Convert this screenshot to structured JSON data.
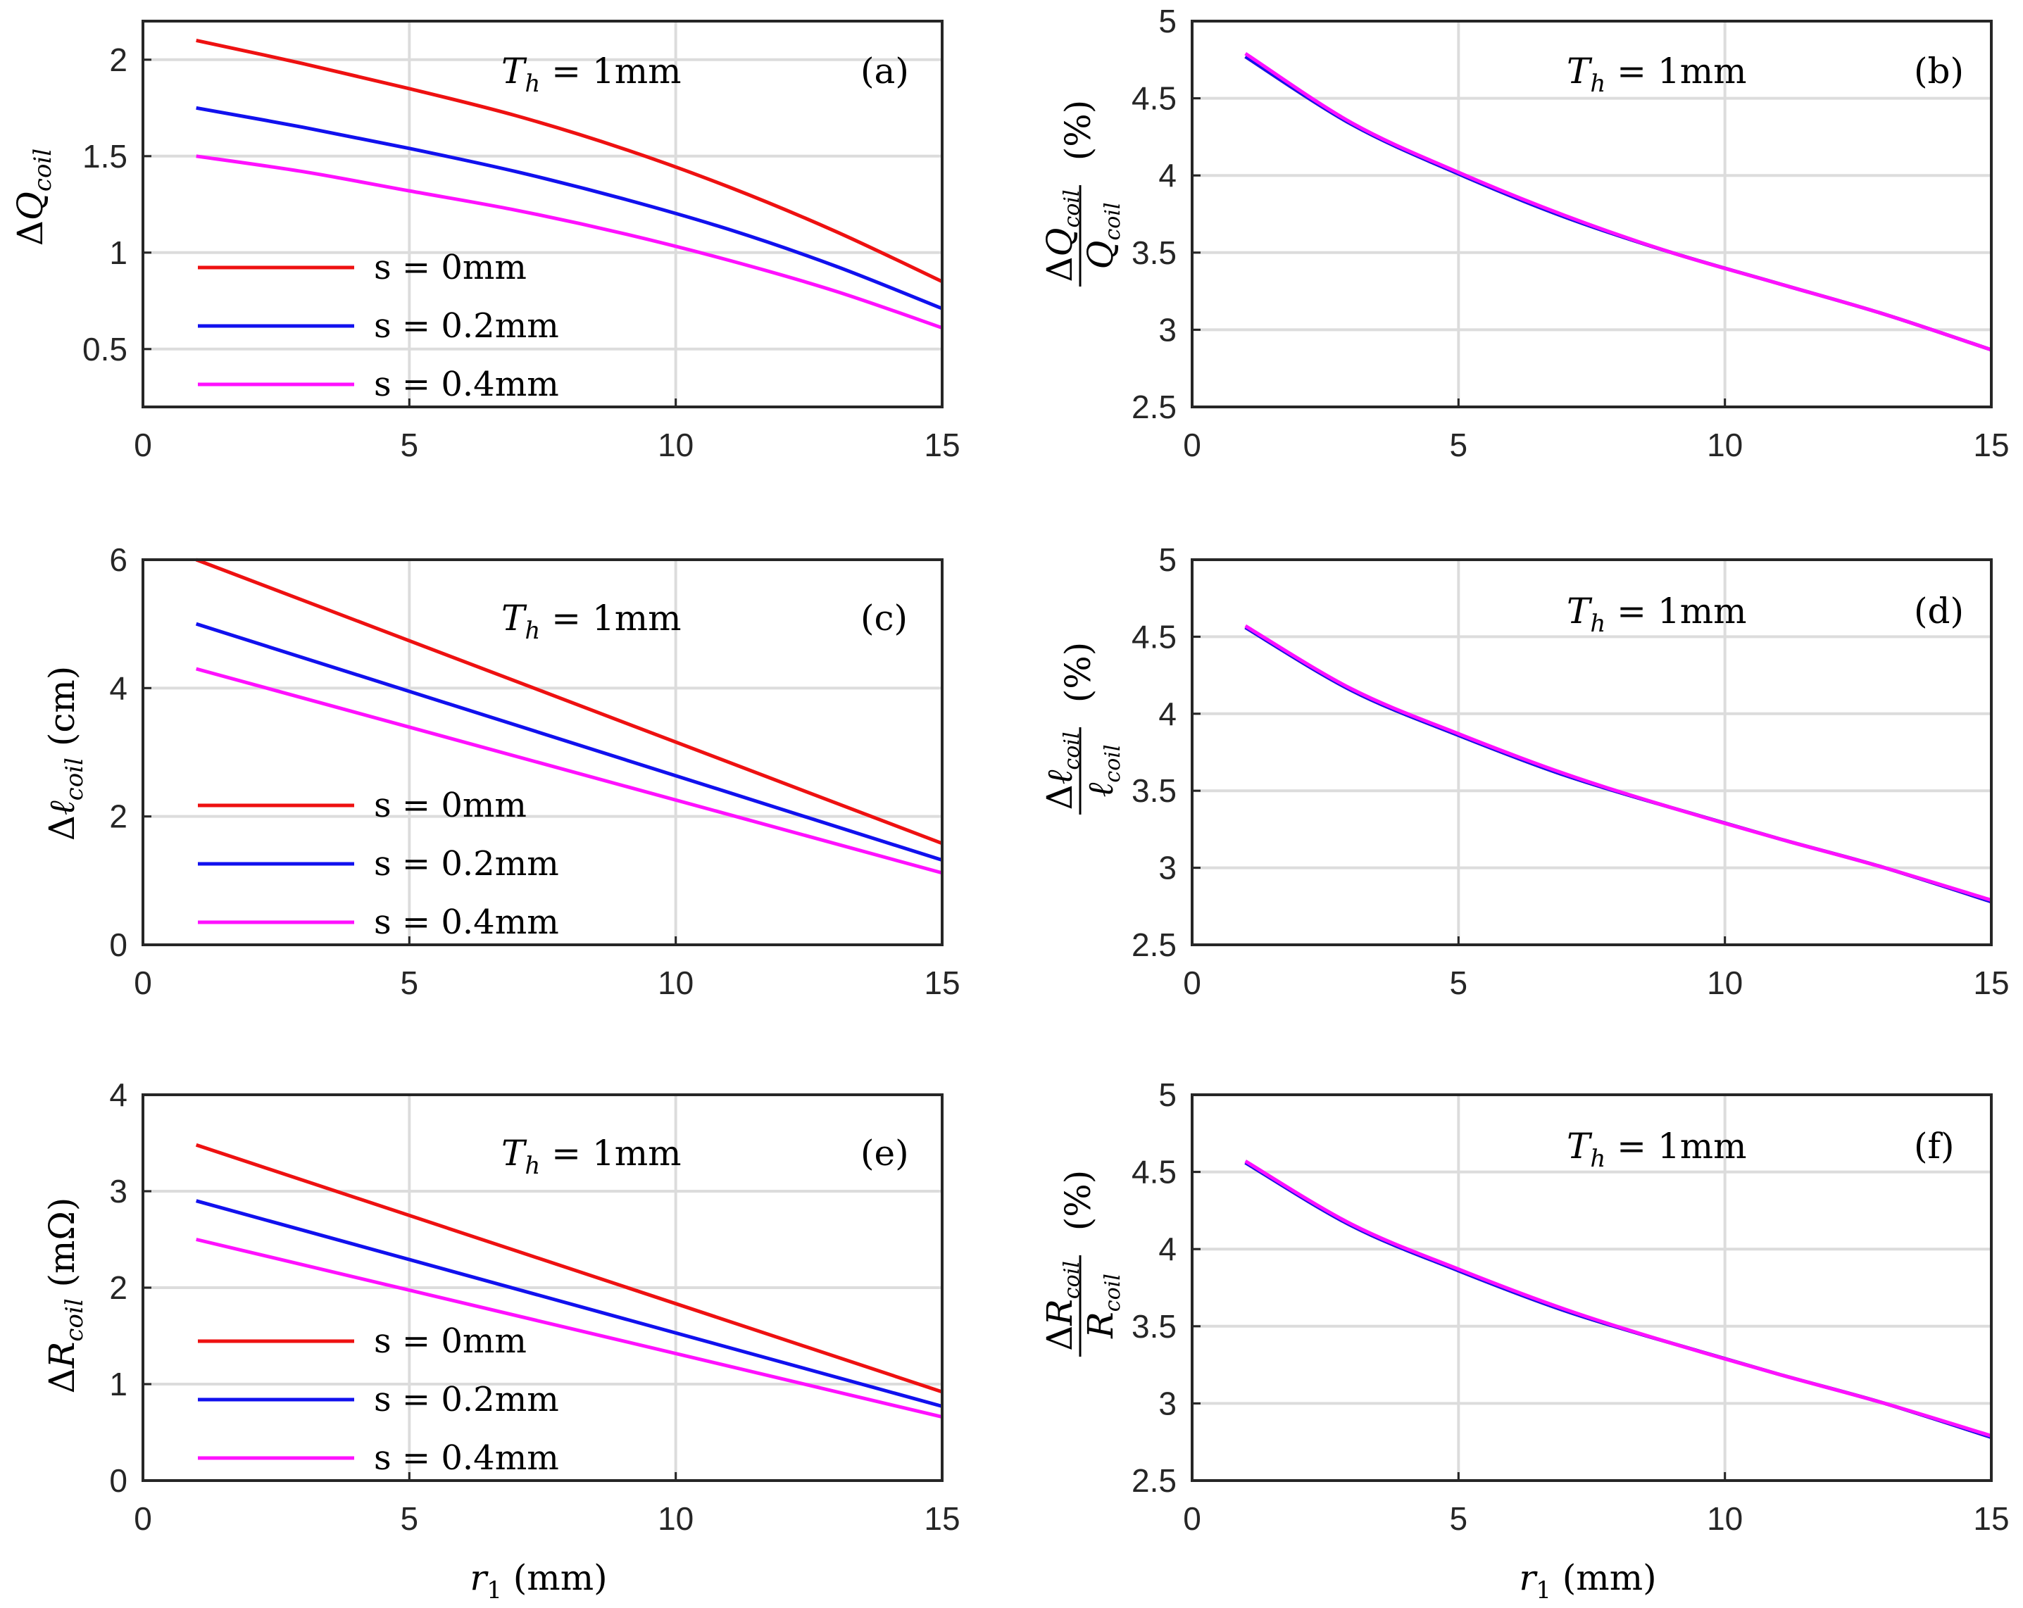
{
  "colors": {
    "s0": "#ee1111",
    "s02": "#1111ee",
    "s04": "#ff11ff"
  },
  "chart_data": [
    {
      "id": "a",
      "type": "line",
      "panel_label": "(a)",
      "annotation": "T_h = 1mm",
      "xlabel": "",
      "ylabel": "ΔQ_coil",
      "xlim": [
        0,
        15
      ],
      "ylim": [
        0.2,
        2.2
      ],
      "xticks": [
        "0",
        "5",
        "10",
        "15"
      ],
      "yticks": [
        "0.5",
        "1",
        "1.5",
        "2"
      ],
      "x": [
        1,
        3,
        5,
        7,
        9,
        11,
        13,
        15
      ],
      "series": [
        {
          "name": "s = 0mm",
          "color": "#ee1111",
          "values": [
            2.1,
            1.98,
            1.85,
            1.71,
            1.54,
            1.34,
            1.11,
            0.85
          ]
        },
        {
          "name": "s = 0.2mm",
          "color": "#1111ee",
          "values": [
            1.75,
            1.65,
            1.54,
            1.42,
            1.28,
            1.12,
            0.93,
            0.71
          ]
        },
        {
          "name": "s = 0.4mm",
          "color": "#ff11ff",
          "values": [
            1.5,
            1.42,
            1.32,
            1.22,
            1.1,
            0.96,
            0.8,
            0.61
          ]
        }
      ],
      "legend": "lower-left"
    },
    {
      "id": "b",
      "type": "line",
      "panel_label": "(b)",
      "annotation": "T_h = 1mm",
      "xlabel": "",
      "ylabel": "ΔQ_coil / Q_coil (%)",
      "xlim": [
        0,
        15
      ],
      "ylim": [
        2.5,
        5
      ],
      "xticks": [
        "0",
        "5",
        "10",
        "15"
      ],
      "yticks": [
        "2.5",
        "3",
        "3.5",
        "4",
        "4.5",
        "5"
      ],
      "x": [
        1,
        3,
        5,
        7,
        9,
        11,
        13,
        15
      ],
      "series": [
        {
          "name": "s = 0mm",
          "color": "#ee1111",
          "values": [
            4.77,
            4.33,
            4.01,
            3.73,
            3.5,
            3.3,
            3.1,
            2.87
          ]
        },
        {
          "name": "s = 0.2mm",
          "color": "#1111ee",
          "values": [
            4.77,
            4.33,
            4.01,
            3.73,
            3.5,
            3.3,
            3.1,
            2.87
          ]
        },
        {
          "name": "s = 0.4mm",
          "color": "#ff11ff",
          "values": [
            4.79,
            4.34,
            4.02,
            3.74,
            3.5,
            3.3,
            3.1,
            2.87
          ]
        }
      ]
    },
    {
      "id": "c",
      "type": "line",
      "panel_label": "(c)",
      "annotation": "T_h = 1mm",
      "xlabel": "",
      "ylabel": "Δℓ_coil (cm)",
      "xlim": [
        0,
        15
      ],
      "ylim": [
        0,
        6
      ],
      "xticks": [
        "0",
        "5",
        "10",
        "15"
      ],
      "yticks": [
        "0",
        "2",
        "4",
        "6"
      ],
      "x": [
        1,
        15
      ],
      "series": [
        {
          "name": "s = 0mm",
          "color": "#ee1111",
          "values": [
            6.0,
            1.58
          ]
        },
        {
          "name": "s = 0.2mm",
          "color": "#1111ee",
          "values": [
            5.0,
            1.32
          ]
        },
        {
          "name": "s = 0.4mm",
          "color": "#ff11ff",
          "values": [
            4.3,
            1.12
          ]
        }
      ],
      "legend": "lower-left"
    },
    {
      "id": "d",
      "type": "line",
      "panel_label": "(d)",
      "annotation": "T_h = 1mm",
      "xlabel": "",
      "ylabel": "Δℓ_coil / ℓ_coil (%)",
      "xlim": [
        0,
        15
      ],
      "ylim": [
        2.5,
        5
      ],
      "xticks": [
        "0",
        "5",
        "10",
        "15"
      ],
      "yticks": [
        "2.5",
        "3",
        "3.5",
        "4",
        "4.5",
        "5"
      ],
      "x": [
        1,
        3,
        5,
        7,
        9,
        11,
        13,
        15
      ],
      "series": [
        {
          "name": "s = 0mm",
          "color": "#ee1111",
          "values": [
            4.56,
            4.15,
            3.86,
            3.6,
            3.39,
            3.19,
            3.0,
            2.78
          ]
        },
        {
          "name": "s = 0.2mm",
          "color": "#1111ee",
          "values": [
            4.56,
            4.15,
            3.86,
            3.6,
            3.39,
            3.19,
            3.0,
            2.78
          ]
        },
        {
          "name": "s = 0.4mm",
          "color": "#ff11ff",
          "values": [
            4.57,
            4.16,
            3.87,
            3.61,
            3.39,
            3.19,
            3.0,
            2.79
          ]
        }
      ]
    },
    {
      "id": "e",
      "type": "line",
      "panel_label": "(e)",
      "annotation": "T_h = 1mm",
      "xlabel": "r_1 (mm)",
      "ylabel": "ΔR_coil (mΩ)",
      "xlim": [
        0,
        15
      ],
      "ylim": [
        0,
        4
      ],
      "xticks": [
        "0",
        "5",
        "10",
        "15"
      ],
      "yticks": [
        "0",
        "1",
        "2",
        "3",
        "4"
      ],
      "x": [
        1,
        15
      ],
      "series": [
        {
          "name": "s = 0mm",
          "color": "#ee1111",
          "values": [
            3.48,
            0.92
          ]
        },
        {
          "name": "s = 0.2mm",
          "color": "#1111ee",
          "values": [
            2.9,
            0.77
          ]
        },
        {
          "name": "s = 0.4mm",
          "color": "#ff11ff",
          "values": [
            2.5,
            0.66
          ]
        }
      ],
      "legend": "lower-left"
    },
    {
      "id": "f",
      "type": "line",
      "panel_label": "(f)",
      "annotation": "T_h = 1mm",
      "xlabel": "r_1 (mm)",
      "ylabel": "ΔR_coil / R_coil (%)",
      "xlim": [
        0,
        15
      ],
      "ylim": [
        2.5,
        5
      ],
      "xticks": [
        "0",
        "5",
        "10",
        "15"
      ],
      "yticks": [
        "2.5",
        "3",
        "3.5",
        "4",
        "4.5",
        "5"
      ],
      "x": [
        1,
        3,
        5,
        7,
        9,
        11,
        13,
        15
      ],
      "series": [
        {
          "name": "s = 0mm",
          "color": "#ee1111",
          "values": [
            4.56,
            4.15,
            3.86,
            3.6,
            3.39,
            3.19,
            3.0,
            2.78
          ]
        },
        {
          "name": "s = 0.2mm",
          "color": "#1111ee",
          "values": [
            4.56,
            4.15,
            3.86,
            3.6,
            3.39,
            3.19,
            3.0,
            2.78
          ]
        },
        {
          "name": "s = 0.4mm",
          "color": "#ff11ff",
          "values": [
            4.57,
            4.16,
            3.87,
            3.61,
            3.39,
            3.19,
            3.0,
            2.79
          ]
        }
      ]
    }
  ]
}
